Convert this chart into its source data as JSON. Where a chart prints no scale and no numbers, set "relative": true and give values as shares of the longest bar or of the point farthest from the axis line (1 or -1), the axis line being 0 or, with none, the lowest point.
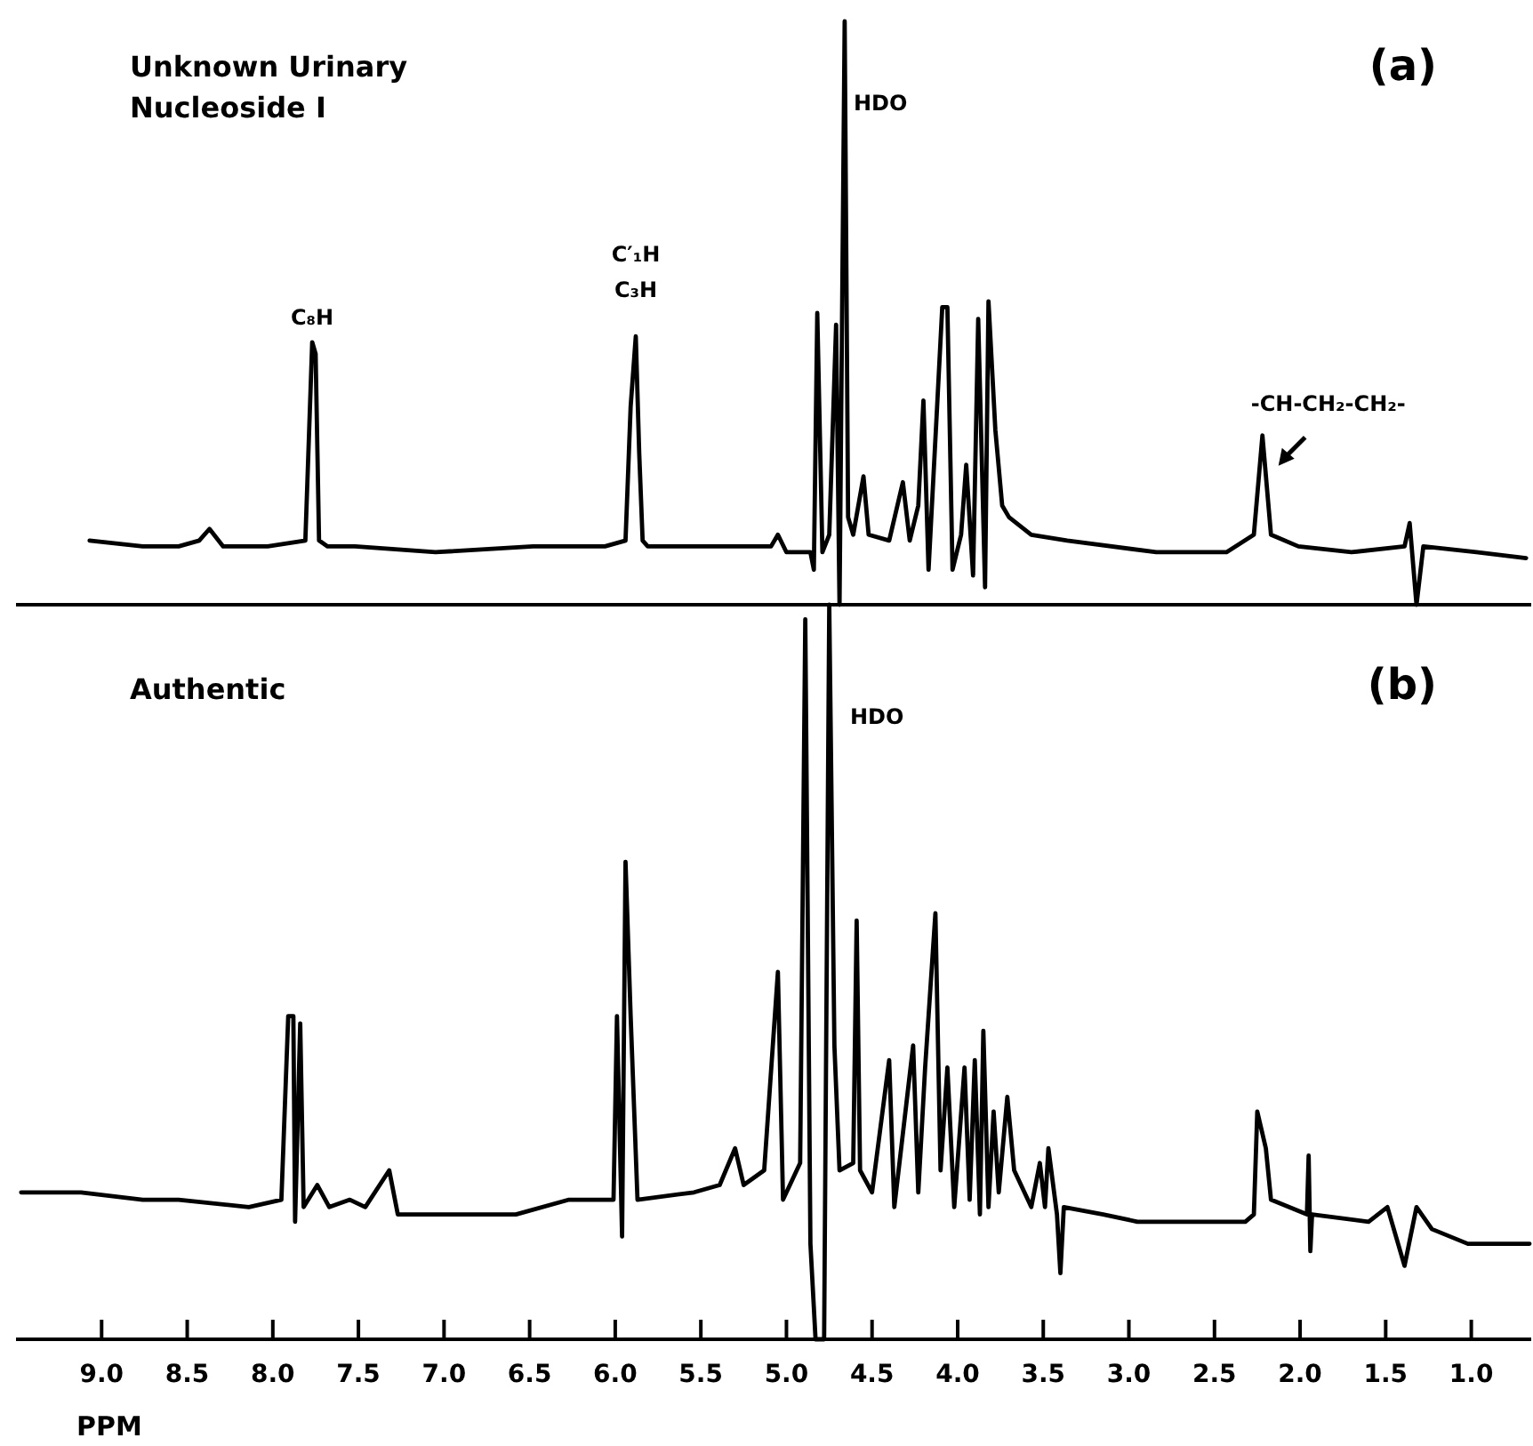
{
  "chart_data": [
    {
      "type": "line",
      "title": "Unknown Urinary\nNucleoside I",
      "relative": true,
      "xlim": [
        9.5,
        0.65
      ],
      "tick_labels": false,
      "grid": false,
      "marker": "none",
      "line_style": "solid",
      "annotations": [
        "(a)",
        {
          "text": "C₈H",
          "x": 7.77,
          "y": 0.45
        },
        {
          "text": "C′₁H\nC₃H",
          "x": 5.88,
          "y": 0.46
        },
        "HDO",
        {
          "text": "-CH-CH₂-CH₂-",
          "x": 2.22,
          "y": 0.29
        }
      ],
      "series": [
        {
          "color": "#000000",
          "x": [
            9.07,
            8.76,
            8.55,
            8.43,
            8.37,
            8.29,
            8.03,
            7.81,
            7.77,
            7.75,
            7.73,
            7.68,
            7.52,
            7.05,
            6.48,
            6.06,
            5.94,
            5.91,
            5.88,
            5.86,
            5.84,
            5.81,
            5.65,
            5.23,
            5.09,
            5.05,
            5.0,
            4.86,
            4.84,
            4.82,
            4.79,
            4.75,
            4.71,
            4.69,
            4.66,
            4.64,
            4.61,
            4.55,
            4.52,
            4.4,
            4.32,
            4.28,
            4.23,
            4.2,
            4.17,
            4.12,
            4.09,
            4.06,
            4.03,
            3.98,
            3.95,
            3.91,
            3.88,
            3.84,
            3.82,
            3.78,
            3.74,
            3.7,
            3.57,
            3.36,
            2.84,
            2.43,
            2.27,
            2.22,
            2.17,
            2.01,
            1.7,
            1.39,
            1.36,
            1.32,
            1.28,
            0.97,
            0.68
          ],
          "values": [
            0.11,
            0.1,
            0.1,
            0.11,
            0.13,
            0.1,
            0.1,
            0.11,
            0.45,
            0.43,
            0.11,
            0.1,
            0.1,
            0.09,
            0.1,
            0.1,
            0.11,
            0.34,
            0.46,
            0.26,
            0.11,
            0.1,
            0.1,
            0.1,
            0.1,
            0.12,
            0.09,
            0.09,
            0.06,
            0.5,
            0.09,
            0.12,
            0.48,
            0,
            1,
            0.15,
            0.12,
            0.22,
            0.12,
            0.11,
            0.21,
            0.11,
            0.17,
            0.35,
            0.06,
            0.34,
            0.51,
            0.51,
            0.06,
            0.12,
            0.24,
            0.05,
            0.49,
            0.03,
            0.52,
            0.3,
            0.17,
            0.15,
            0.12,
            0.11,
            0.09,
            0.09,
            0.12,
            0.29,
            0.12,
            0.1,
            0.09,
            0.1,
            0.14,
            0,
            0.1,
            0.09,
            0.08
          ]
        }
      ]
    },
    {
      "type": "line",
      "title": "Authentic",
      "xlabel": "PPM",
      "relative": true,
      "xlim": [
        9.5,
        0.65
      ],
      "xticks": [
        {
          "value": 9,
          "label": "9.0"
        },
        8.5,
        {
          "value": 8,
          "label": "8.0"
        },
        7.5,
        {
          "value": 7,
          "label": "7.0"
        },
        6.5,
        {
          "value": 6,
          "label": "6.0"
        },
        5.5,
        {
          "value": 5,
          "label": "5.0"
        },
        4.5,
        {
          "value": 4,
          "label": "4.0"
        },
        3.5,
        {
          "value": 3,
          "label": "3.0"
        },
        2.5,
        {
          "value": 2,
          "label": "2.0"
        },
        1.5,
        {
          "value": 1,
          "label": "1.0"
        }
      ],
      "tick_labels": "x",
      "grid": false,
      "marker": "none",
      "line_style": "solid",
      "annotations": [
        "(b)",
        "HDO"
      ],
      "series": [
        {
          "color": "#000000",
          "x": [
            9.47,
            9.12,
            8.76,
            8.55,
            8.14,
            7.95,
            7.91,
            7.88,
            7.87,
            7.84,
            7.82,
            7.74,
            7.67,
            7.55,
            7.46,
            7.32,
            7.27,
            7.0,
            6.58,
            6.27,
            6.01,
            5.99,
            5.96,
            5.94,
            5.91,
            5.87,
            5.54,
            5.39,
            5.3,
            5.25,
            5.13,
            5.05,
            5.02,
            4.92,
            4.89,
            4.86,
            4.83,
            4.78,
            4.75,
            4.72,
            4.69,
            4.61,
            4.59,
            4.57,
            4.5,
            4.4,
            4.37,
            4.26,
            4.23,
            4.19,
            4.13,
            4.1,
            4.06,
            4.02,
            3.96,
            3.93,
            3.9,
            3.87,
            3.85,
            3.82,
            3.79,
            3.76,
            3.71,
            3.67,
            3.57,
            3.52,
            3.49,
            3.47,
            3.42,
            3.4,
            3.38,
            3.15,
            2.95,
            2.84,
            2.32,
            2.27,
            2.25,
            2.2,
            2.17,
            1.96,
            1.95,
            1.94,
            1.93,
            1.6,
            1.49,
            1.39,
            1.32,
            1.23,
            1.02,
            0.66
          ],
          "values": [
            0.2,
            0.2,
            0.19,
            0.19,
            0.18,
            0.19,
            0.44,
            0.44,
            0.16,
            0.43,
            0.18,
            0.21,
            0.18,
            0.19,
            0.18,
            0.23,
            0.17,
            0.17,
            0.17,
            0.19,
            0.19,
            0.44,
            0.14,
            0.65,
            0.44,
            0.19,
            0.2,
            0.21,
            0.26,
            0.21,
            0.23,
            0.5,
            0.19,
            0.24,
            0.98,
            0.13,
            0,
            0,
            1,
            0.4,
            0.23,
            0.24,
            0.57,
            0.23,
            0.2,
            0.38,
            0.18,
            0.4,
            0.2,
            0.37,
            0.58,
            0.23,
            0.37,
            0.18,
            0.37,
            0.19,
            0.38,
            0.17,
            0.42,
            0.18,
            0.31,
            0.2,
            0.33,
            0.23,
            0.18,
            0.24,
            0.18,
            0.26,
            0.17,
            0.09,
            0.18,
            0.17,
            0.16,
            0.16,
            0.16,
            0.17,
            0.31,
            0.26,
            0.19,
            0.17,
            0.25,
            0.12,
            0.17,
            0.16,
            0.18,
            0.1,
            0.18,
            0.15,
            0.13,
            0.13
          ]
        }
      ]
    }
  ]
}
